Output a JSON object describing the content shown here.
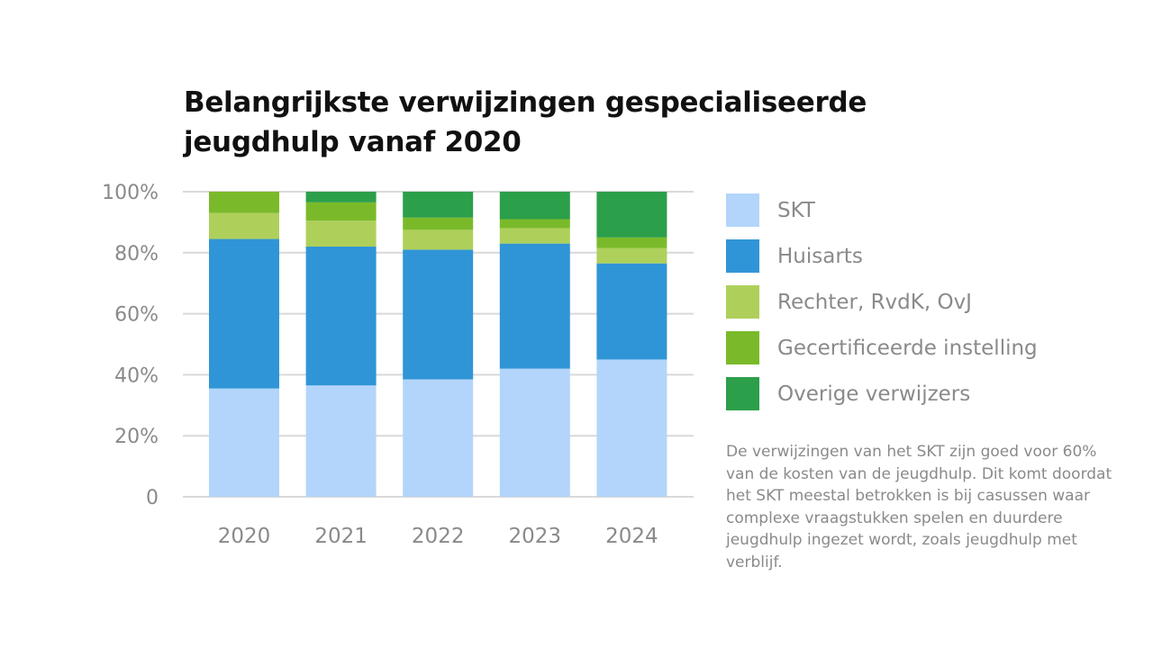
{
  "title_lines": [
    "Belangrijkste verwijzingen gespecialiseerde",
    "jeugdhulp vanaf 2020"
  ],
  "note": "De verwijzingen van het SKT zijn goed voor 60% van de kosten van de jeugdhulp. Dit komt doordat het SKT meestal betrokken is bij casussen waar complexe vraagstukken spelen en duurdere jeugdhulp ingezet wordt, zoals jeugdhulp met verblijf.",
  "chart_data": {
    "type": "bar",
    "stacked": true,
    "categories": [
      "2020",
      "2021",
      "2022",
      "2023",
      "2024"
    ],
    "series": [
      {
        "name": "SKT",
        "color": "#b3d5fb",
        "values": [
          35.5,
          36.5,
          38.5,
          42,
          45
        ]
      },
      {
        "name": "Huisarts",
        "color": "#3095d6",
        "values": [
          49,
          45.5,
          42.5,
          41,
          31.5
        ]
      },
      {
        "name": "Rechter, RvdK, OvJ",
        "color": "#aed05b",
        "values": [
          8.5,
          8.5,
          6.5,
          5,
          5
        ]
      },
      {
        "name": "Gecertificeerde instelling",
        "color": "#7aba2a",
        "values": [
          7,
          6,
          4,
          3,
          3.5
        ]
      },
      {
        "name": "Overige verwijzers",
        "color": "#2c9f4a",
        "values": [
          0,
          3.5,
          8.5,
          9,
          15
        ]
      }
    ],
    "ylim": [
      0,
      100
    ],
    "yticks": [
      "0",
      "20%",
      "40%",
      "60%",
      "80%",
      "100%"
    ],
    "ytick_values": [
      0,
      20,
      40,
      60,
      80,
      100
    ],
    "grid": true,
    "legend_position": "right"
  }
}
